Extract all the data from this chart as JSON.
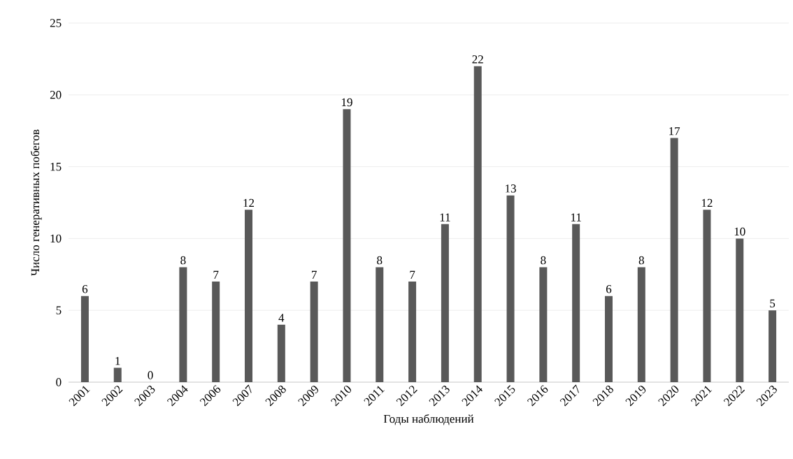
{
  "chart_data": {
    "type": "bar",
    "xlabel": "Годы наблюдений",
    "ylabel": "Число генеративных  побегов",
    "categories": [
      "2001",
      "2002",
      "2003",
      "2004",
      "2006",
      "2007",
      "2008",
      "2009",
      "2010",
      "2011",
      "2012",
      "2013",
      "2014",
      "2015",
      "2016",
      "2017",
      "2018",
      "2019",
      "2020",
      "2021",
      "2022",
      "2023"
    ],
    "values": [
      6,
      1,
      0,
      8,
      7,
      12,
      4,
      7,
      19,
      8,
      7,
      11,
      22,
      13,
      8,
      11,
      6,
      8,
      17,
      12,
      10,
      5
    ],
    "color": "#595959",
    "ylim": [
      0,
      25
    ],
    "yticks": [
      0,
      5,
      10,
      15,
      20,
      25
    ],
    "grid": "y",
    "data_labels": true
  }
}
